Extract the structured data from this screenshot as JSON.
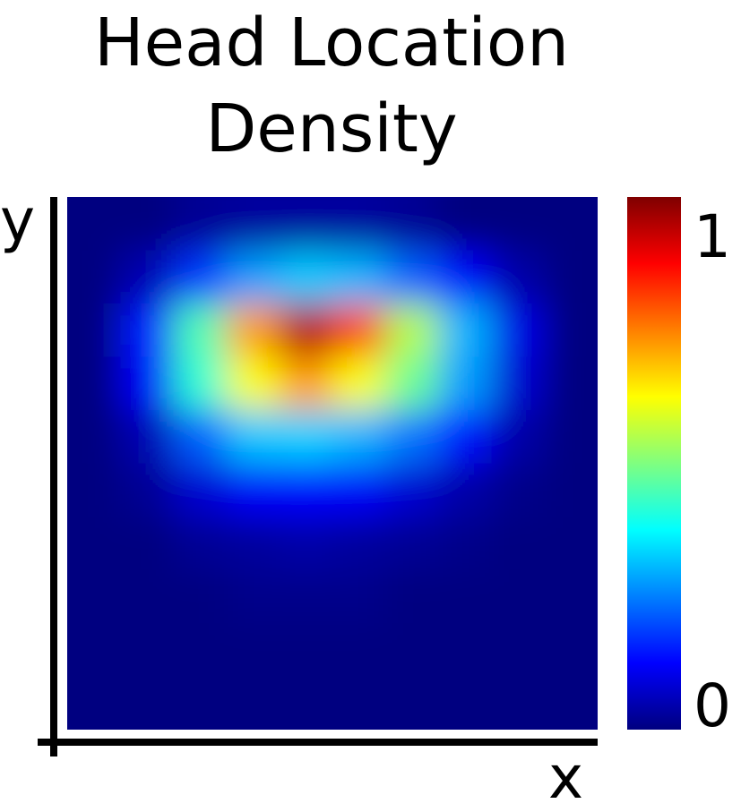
{
  "chart_data": {
    "type": "heatmap",
    "title": "Head Location Density",
    "title_lines": [
      "Head Location",
      "Density"
    ],
    "xlabel": "x",
    "ylabel": "y",
    "colormap": "jet",
    "colorbar": {
      "min": 0,
      "max": 1,
      "tick_labels": [
        "0",
        "1"
      ]
    },
    "grid": false,
    "rows": 10,
    "cols": 10,
    "values": [
      [
        0.0,
        0.0,
        0.02,
        0.03,
        0.03,
        0.03,
        0.02,
        0.0,
        0.0,
        0.0
      ],
      [
        0.0,
        0.05,
        0.18,
        0.28,
        0.32,
        0.3,
        0.22,
        0.12,
        0.04,
        0.0
      ],
      [
        0.0,
        0.15,
        0.45,
        0.72,
        0.95,
        0.8,
        0.55,
        0.3,
        0.1,
        0.0
      ],
      [
        0.0,
        0.12,
        0.42,
        0.62,
        0.72,
        0.62,
        0.48,
        0.28,
        0.08,
        0.0
      ],
      [
        0.0,
        0.05,
        0.22,
        0.32,
        0.33,
        0.3,
        0.24,
        0.14,
        0.04,
        0.0
      ],
      [
        0.0,
        0.02,
        0.08,
        0.12,
        0.13,
        0.12,
        0.08,
        0.04,
        0.01,
        0.0
      ],
      [
        0.0,
        0.0,
        0.02,
        0.03,
        0.04,
        0.03,
        0.02,
        0.01,
        0.0,
        0.0
      ],
      [
        0.0,
        0.0,
        0.0,
        0.01,
        0.01,
        0.01,
        0.0,
        0.0,
        0.0,
        0.0
      ],
      [
        0.0,
        0.0,
        0.0,
        0.0,
        0.0,
        0.0,
        0.0,
        0.0,
        0.0,
        0.0
      ],
      [
        0.0,
        0.0,
        0.0,
        0.0,
        0.0,
        0.0,
        0.0,
        0.0,
        0.0,
        0.0
      ]
    ]
  },
  "colors": {
    "background": "#ffffff",
    "axis": "#000000",
    "jet_low": "#00007f",
    "jet_high": "#7f0000"
  }
}
